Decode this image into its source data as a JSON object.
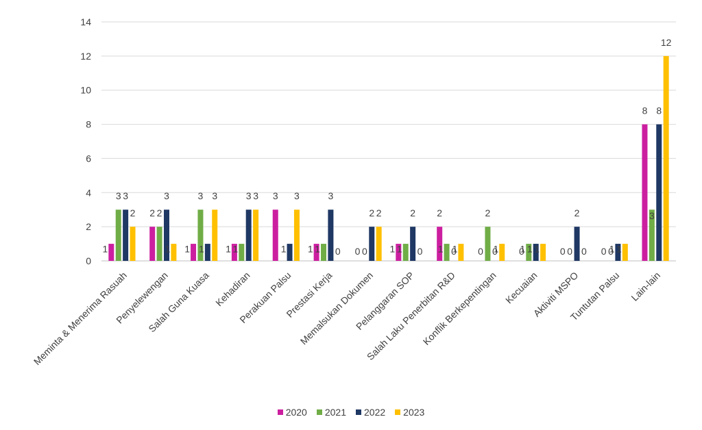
{
  "chart_data": {
    "type": "bar",
    "title": "",
    "xlabel": "",
    "ylabel": "",
    "ylim": [
      0,
      14
    ],
    "yticks": [
      0,
      2,
      4,
      6,
      8,
      10,
      12,
      14
    ],
    "grid": true,
    "legend_position": "bottom",
    "categories": [
      "Meminta & Menerima Rasuah",
      "Penyelewengan",
      "Salah Guna Kuasa",
      "Kehadiran",
      "Perakuan Palsu",
      "Prestasi Kerja",
      "Memalsukan Dokumen",
      "Pelanggaran SOP",
      "Salah Laku Penerbitan R&D",
      "Konflik Berkepentingan",
      "Kecuaian",
      "Aktiviti MSPO",
      "Tuntutan Palsu",
      "Lain-lain"
    ],
    "series": [
      {
        "name": "2020",
        "color": "#cc1fa0",
        "values": [
          1,
          2,
          1,
          1,
          3,
          1,
          0,
          1,
          2,
          0,
          0,
          0,
          0,
          8
        ]
      },
      {
        "name": "2021",
        "color": "#70ad47",
        "values": [
          3,
          2,
          3,
          1,
          null,
          1,
          0,
          1,
          1,
          2,
          1,
          0,
          0,
          3
        ]
      },
      {
        "name": "2022",
        "color": "#1f3864",
        "values": [
          3,
          3,
          1,
          3,
          1,
          3,
          2,
          2,
          0,
          0,
          1,
          2,
          1,
          8
        ]
      },
      {
        "name": "2023",
        "color": "#ffc000",
        "values": [
          2,
          1,
          3,
          3,
          3,
          0,
          2,
          0,
          1,
          1,
          1,
          0,
          1,
          12
        ]
      }
    ]
  }
}
